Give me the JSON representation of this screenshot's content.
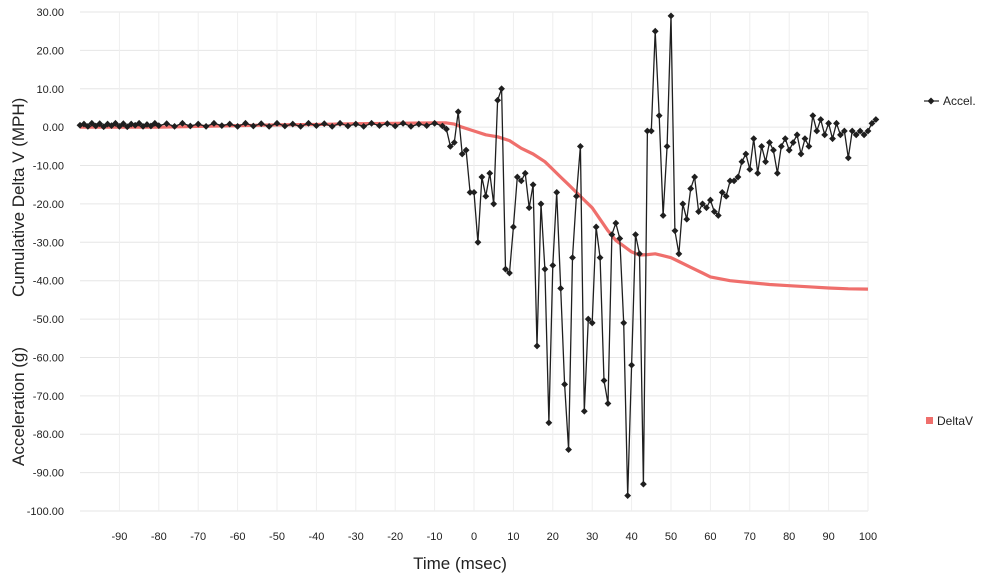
{
  "chart_data": {
    "type": "line",
    "title": "",
    "xlabel": "Time (msec)",
    "ylabels": [
      "Cumulative Delta V (MPH)",
      "Acceleration (g)"
    ],
    "xlim": [
      -100,
      100
    ],
    "ylim": [
      -100,
      30
    ],
    "xticks": [
      -90,
      -80,
      -70,
      -60,
      -50,
      -40,
      -30,
      -20,
      -10,
      0,
      10,
      20,
      30,
      40,
      50,
      60,
      70,
      80,
      90,
      100
    ],
    "yticks": [
      30,
      20,
      10,
      0,
      -10,
      -20,
      -30,
      -40,
      -50,
      -60,
      -70,
      -80,
      -90,
      -100
    ],
    "ytick_labels": [
      "30.00",
      "20.00",
      "10.00",
      "0.00",
      "-10.00",
      "-20.00",
      "-30.00",
      "-40.00",
      "-50.00",
      "-60.00",
      "-70.00",
      "-80.00",
      "-90.00",
      "-100.00"
    ],
    "grid": true,
    "legend_position": "right",
    "series": [
      {
        "name": "Accel.",
        "color": "#1f1f1f",
        "marker": "diamond",
        "points": [
          [
            -100,
            0.5
          ],
          [
            -99,
            0.8
          ],
          [
            -98,
            0.2
          ],
          [
            -97,
            1
          ],
          [
            -96,
            0.3
          ],
          [
            -95,
            0.9
          ],
          [
            -94,
            0.1
          ],
          [
            -93,
            0.8
          ],
          [
            -92,
            0.4
          ],
          [
            -91,
            1
          ],
          [
            -90,
            0.2
          ],
          [
            -89,
            0.9
          ],
          [
            -88,
            0.1
          ],
          [
            -87,
            0.8
          ],
          [
            -86,
            0.5
          ],
          [
            -85,
            1
          ],
          [
            -84,
            0.2
          ],
          [
            -83,
            0.7
          ],
          [
            -82,
            0.3
          ],
          [
            -81,
            1
          ],
          [
            -80,
            0.4
          ],
          [
            -78,
            0.9
          ],
          [
            -76,
            0.2
          ],
          [
            -74,
            1
          ],
          [
            -72,
            0.3
          ],
          [
            -70,
            0.8
          ],
          [
            -68,
            0.2
          ],
          [
            -66,
            1
          ],
          [
            -64,
            0.4
          ],
          [
            -62,
            0.8
          ],
          [
            -60,
            0.2
          ],
          [
            -58,
            1
          ],
          [
            -56,
            0.3
          ],
          [
            -54,
            0.9
          ],
          [
            -52,
            0.2
          ],
          [
            -50,
            1
          ],
          [
            -48,
            0.3
          ],
          [
            -46,
            0.8
          ],
          [
            -44,
            0.2
          ],
          [
            -42,
            1
          ],
          [
            -40,
            0.4
          ],
          [
            -38,
            0.9
          ],
          [
            -36,
            0.2
          ],
          [
            -34,
            1
          ],
          [
            -32,
            0.3
          ],
          [
            -30,
            0.8
          ],
          [
            -28,
            0.2
          ],
          [
            -26,
            1
          ],
          [
            -24,
            0.4
          ],
          [
            -22,
            0.9
          ],
          [
            -20,
            0.3
          ],
          [
            -18,
            1
          ],
          [
            -16,
            0.2
          ],
          [
            -14,
            0.8
          ],
          [
            -12,
            0.4
          ],
          [
            -10,
            1
          ],
          [
            -8,
            0.3
          ],
          [
            -7,
            -0.5
          ],
          [
            -6,
            -5
          ],
          [
            -5,
            -4
          ],
          [
            -4,
            4
          ],
          [
            -3,
            -7
          ],
          [
            -2,
            -6
          ],
          [
            -1,
            -17
          ],
          [
            0,
            -17
          ],
          [
            1,
            -30
          ],
          [
            2,
            -13
          ],
          [
            3,
            -18
          ],
          [
            4,
            -12
          ],
          [
            5,
            -20
          ],
          [
            6,
            7
          ],
          [
            7,
            10
          ],
          [
            8,
            -37
          ],
          [
            9,
            -38
          ],
          [
            10,
            -26
          ],
          [
            11,
            -13
          ],
          [
            12,
            -14
          ],
          [
            13,
            -12
          ],
          [
            14,
            -21
          ],
          [
            15,
            -15
          ],
          [
            16,
            -57
          ],
          [
            17,
            -20
          ],
          [
            18,
            -37
          ],
          [
            19,
            -77
          ],
          [
            20,
            -36
          ],
          [
            21,
            -17
          ],
          [
            22,
            -42
          ],
          [
            23,
            -67
          ],
          [
            24,
            -84
          ],
          [
            25,
            -34
          ],
          [
            26,
            -18
          ],
          [
            27,
            -5
          ],
          [
            28,
            -74
          ],
          [
            29,
            -50
          ],
          [
            30,
            -51
          ],
          [
            31,
            -26
          ],
          [
            32,
            -34
          ],
          [
            33,
            -66
          ],
          [
            34,
            -72
          ],
          [
            35,
            -28
          ],
          [
            36,
            -25
          ],
          [
            37,
            -29
          ],
          [
            38,
            -51
          ],
          [
            39,
            -96
          ],
          [
            40,
            -62
          ],
          [
            41,
            -28
          ],
          [
            42,
            -33
          ],
          [
            43,
            -93
          ],
          [
            44,
            -1
          ],
          [
            45,
            -1
          ],
          [
            46,
            25
          ],
          [
            47,
            3
          ],
          [
            48,
            -23
          ],
          [
            49,
            -5
          ],
          [
            50,
            29
          ],
          [
            51,
            -27
          ],
          [
            52,
            -33
          ],
          [
            53,
            -20
          ],
          [
            54,
            -24
          ],
          [
            55,
            -16
          ],
          [
            56,
            -13
          ],
          [
            57,
            -22
          ],
          [
            58,
            -20
          ],
          [
            59,
            -21
          ],
          [
            60,
            -19
          ],
          [
            61,
            -22
          ],
          [
            62,
            -23
          ],
          [
            63,
            -17
          ],
          [
            64,
            -18
          ],
          [
            65,
            -14
          ],
          [
            66,
            -14
          ],
          [
            67,
            -13
          ],
          [
            68,
            -9
          ],
          [
            69,
            -7
          ],
          [
            70,
            -11
          ],
          [
            71,
            -3
          ],
          [
            72,
            -12
          ],
          [
            73,
            -5
          ],
          [
            74,
            -9
          ],
          [
            75,
            -4
          ],
          [
            76,
            -6
          ],
          [
            77,
            -12
          ],
          [
            78,
            -5
          ],
          [
            79,
            -3
          ],
          [
            80,
            -6
          ],
          [
            81,
            -4
          ],
          [
            82,
            -2
          ],
          [
            83,
            -7
          ],
          [
            84,
            -3
          ],
          [
            85,
            -5
          ],
          [
            86,
            3
          ],
          [
            87,
            -1
          ],
          [
            88,
            2
          ],
          [
            89,
            -2
          ],
          [
            90,
            1
          ],
          [
            91,
            -3
          ],
          [
            92,
            1
          ],
          [
            93,
            -2
          ],
          [
            94,
            -1
          ],
          [
            95,
            -8
          ],
          [
            96,
            -1
          ],
          [
            97,
            -2
          ],
          [
            98,
            -1
          ],
          [
            99,
            -2
          ],
          [
            100,
            -1
          ],
          [
            101,
            1
          ],
          [
            102,
            2
          ]
        ]
      },
      {
        "name": "DeltaV",
        "color": "#ef6f6c",
        "marker": "square",
        "points": [
          [
            -100,
            0
          ],
          [
            -90,
            0
          ],
          [
            -80,
            0
          ],
          [
            -70,
            0.2
          ],
          [
            -60,
            0.4
          ],
          [
            -50,
            0.6
          ],
          [
            -40,
            0.7
          ],
          [
            -30,
            0.9
          ],
          [
            -20,
            1
          ],
          [
            -10,
            1.1
          ],
          [
            -7,
            1.1
          ],
          [
            -5,
            0.8
          ],
          [
            -3,
            0
          ],
          [
            0,
            -1
          ],
          [
            3,
            -2
          ],
          [
            6,
            -2.5
          ],
          [
            9,
            -3.5
          ],
          [
            12,
            -5.5
          ],
          [
            15,
            -7
          ],
          [
            18,
            -9
          ],
          [
            20,
            -11
          ],
          [
            22,
            -13
          ],
          [
            24,
            -15
          ],
          [
            26,
            -17
          ],
          [
            28,
            -19
          ],
          [
            30,
            -21
          ],
          [
            32,
            -24
          ],
          [
            34,
            -27
          ],
          [
            36,
            -29.5
          ],
          [
            38,
            -31
          ],
          [
            40,
            -32.5
          ],
          [
            42,
            -33.3
          ],
          [
            44,
            -33.2
          ],
          [
            46,
            -33
          ],
          [
            48,
            -33.5
          ],
          [
            50,
            -34
          ],
          [
            52,
            -35
          ],
          [
            55,
            -36.5
          ],
          [
            58,
            -38
          ],
          [
            60,
            -39
          ],
          [
            65,
            -40
          ],
          [
            70,
            -40.5
          ],
          [
            75,
            -41
          ],
          [
            80,
            -41.3
          ],
          [
            85,
            -41.6
          ],
          [
            90,
            -41.9
          ],
          [
            95,
            -42.1
          ],
          [
            100,
            -42.2
          ]
        ]
      }
    ]
  }
}
